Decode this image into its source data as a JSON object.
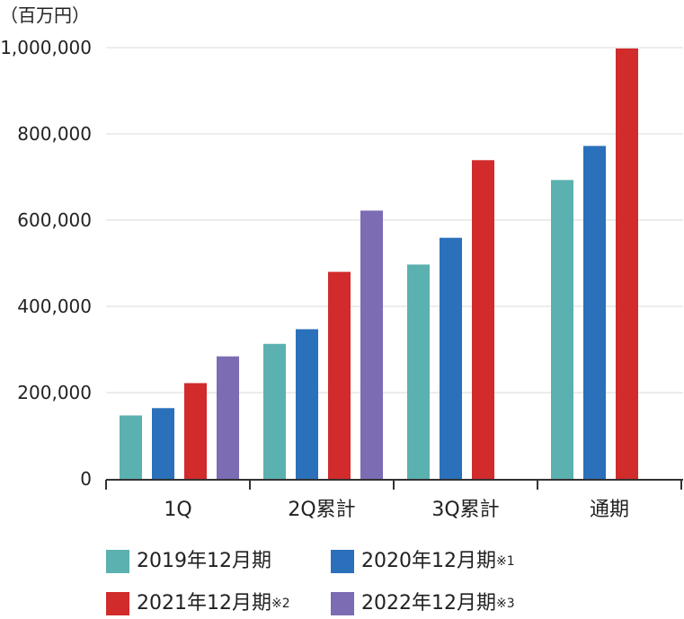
{
  "chart_data": {
    "type": "bar",
    "unit_label": "（百万円）",
    "categories": [
      "1Q",
      "2Q累計",
      "3Q累計",
      "通期"
    ],
    "ylim": [
      0,
      1000000
    ],
    "yticks": [
      0,
      200000,
      400000,
      600000,
      800000,
      1000000
    ],
    "ytick_labels": [
      "0",
      "200,000",
      "400,000",
      "600,000",
      "800,000",
      "1,000,000"
    ],
    "grid": true,
    "legend_position": "bottom",
    "series": [
      {
        "name": "2019年12月期",
        "note": "",
        "color": "#5bb1af",
        "values": [
          147000,
          313000,
          497000,
          693000
        ]
      },
      {
        "name": "2020年12月期",
        "note": "※1",
        "color": "#2a70ba",
        "values": [
          164000,
          347000,
          559000,
          772000
        ]
      },
      {
        "name": "2021年12月期",
        "note": "※2",
        "color": "#d12b2b",
        "values": [
          222000,
          480000,
          739000,
          998000
        ]
      },
      {
        "name": "2022年12月期",
        "note": "※3",
        "color": "#7b6cb4",
        "values": [
          284000,
          622000,
          null,
          null
        ]
      }
    ]
  }
}
